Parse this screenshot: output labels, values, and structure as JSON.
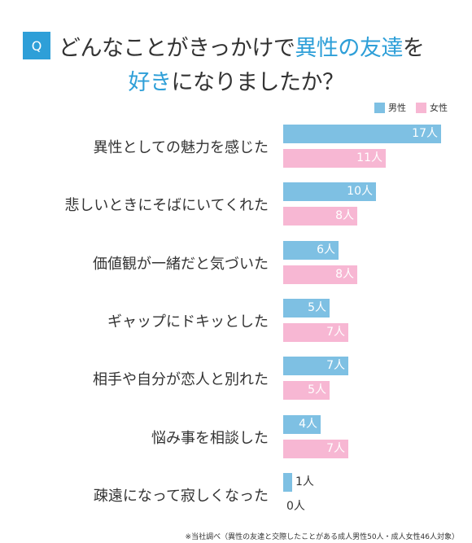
{
  "title": {
    "badge": "Q",
    "line1_plain": "どんなことがきっかけで",
    "line1_highlight": "異性の友達",
    "line1_tail": "を",
    "line2_highlight": "好き",
    "line2_tail": "になりましたか？"
  },
  "colors": {
    "accent": "#2e9fd8",
    "male": "#7ec0e3",
    "female": "#f7b7d3",
    "inside_label": "#ffffff",
    "outside_label": "#333333"
  },
  "chart_data": {
    "type": "bar",
    "orientation": "horizontal",
    "unit": "人",
    "categories": [
      "異性としての魅力を感じた",
      "悲しいときにそばにいてくれた",
      "価値観が一緒だと気づいた",
      "ギャップにドキッとした",
      "相手や自分が恋人と別れた",
      "悩み事を相談した",
      "疎遠になって寂しくなった"
    ],
    "series": [
      {
        "name": "男性",
        "color": "#7ec0e3",
        "values": [
          17,
          10,
          6,
          5,
          7,
          4,
          1
        ]
      },
      {
        "name": "女性",
        "color": "#f7b7d3",
        "values": [
          11,
          8,
          8,
          7,
          5,
          7,
          0
        ]
      }
    ],
    "value_labels": {
      "male": [
        "17人",
        "10人",
        "6人",
        "5人",
        "7人",
        "4人",
        "1人"
      ],
      "female": [
        "11人",
        "8人",
        "8人",
        "7人",
        "5人",
        "7人",
        "0人"
      ]
    },
    "xlim": [
      0,
      17
    ],
    "legend_position": "top-right",
    "grid": false
  },
  "footnote": "※当社調べ（異性の友達と交際したことがある成人男性50人・成人女性46人対象）"
}
